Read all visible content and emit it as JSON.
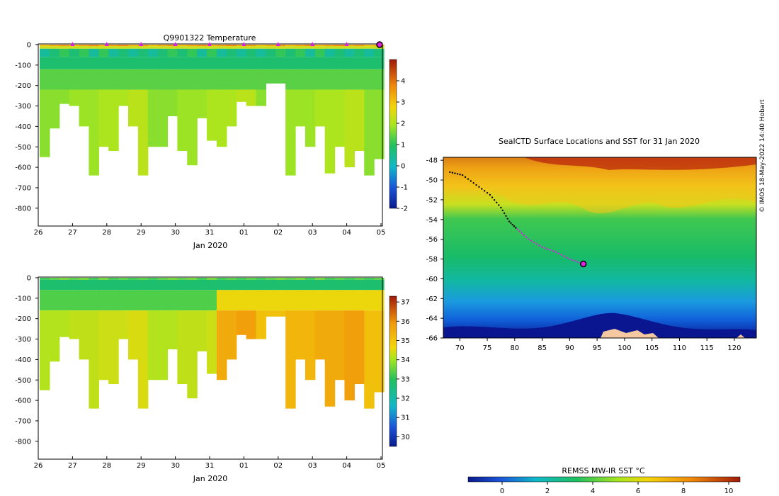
{
  "chart_data": [
    {
      "type": "heatmap",
      "title": "Q9901322  Temperature",
      "xlabel": "Jan 2020",
      "ylabel": "",
      "x_ticks": [
        "26",
        "27",
        "28",
        "29",
        "30",
        "31",
        "01",
        "02",
        "03",
        "04",
        "05"
      ],
      "y_ticks": [
        "0",
        "-100",
        "-200",
        "-300",
        "-400",
        "-500",
        "-600",
        "-700",
        "-800"
      ],
      "ylim": [
        -880,
        0
      ],
      "colorbar_ticks": [
        "4",
        "3",
        "2",
        "1",
        "0",
        "-1",
        "-2"
      ],
      "colorbar_range": [
        -2,
        5
      ],
      "profile_depths": [
        550,
        410,
        290,
        300,
        400,
        640,
        500,
        520,
        300,
        400,
        640,
        500,
        500,
        350,
        520,
        590,
        360,
        470,
        500,
        400,
        280,
        300,
        300,
        190,
        190,
        640,
        400,
        500,
        400,
        630,
        500,
        600,
        520,
        640,
        560
      ],
      "surface_markers_at_day": [
        1,
        2,
        3,
        4,
        5,
        6,
        7,
        8,
        9
      ]
    },
    {
      "type": "heatmap",
      "title": "",
      "xlabel": "Jan 2020",
      "ylabel": "",
      "x_ticks": [
        "26",
        "27",
        "28",
        "29",
        "30",
        "31",
        "01",
        "02",
        "03",
        "04",
        "05"
      ],
      "y_ticks": [
        "0",
        "-100",
        "-200",
        "-300",
        "-400",
        "-500",
        "-600",
        "-700",
        "-800"
      ],
      "ylim": [
        -880,
        0
      ],
      "colorbar_ticks": [
        "37",
        "36",
        "35",
        "34",
        "33",
        "32",
        "31",
        "30"
      ],
      "colorbar_range": [
        29.5,
        37.3
      ]
    },
    {
      "type": "heatmap",
      "title": "SealCTD Surface Locations and SST for 31 Jan 2020",
      "x_ticks": [
        "70",
        "75",
        "80",
        "85",
        "90",
        "95",
        "100",
        "105",
        "110",
        "115",
        "120"
      ],
      "y_ticks": [
        "-48",
        "-50",
        "-52",
        "-54",
        "-56",
        "-58",
        "-60",
        "-62",
        "-64",
        "-66"
      ],
      "xlim": [
        67,
        124
      ],
      "ylim": [
        -66,
        -47.7
      ],
      "track": [
        [
          68.2,
          -49.2
        ],
        [
          70.5,
          -49.5
        ],
        [
          73,
          -50.5
        ],
        [
          75.5,
          -51.5
        ],
        [
          77.5,
          -52.8
        ],
        [
          79,
          -54.2
        ],
        [
          80.5,
          -55
        ],
        [
          82.5,
          -56
        ],
        [
          85,
          -56.8
        ],
        [
          87.5,
          -57.3
        ],
        [
          90,
          -58
        ],
        [
          92.5,
          -58.5
        ]
      ],
      "latest_position": [
        92.5,
        -58.5
      ],
      "colorbar_label": "REMSS MW-IR SST °C",
      "colorbar_ticks": [
        "0",
        "2",
        "4",
        "6",
        "8",
        "10"
      ],
      "colorbar_range": [
        -1.5,
        10.5
      ]
    }
  ],
  "credit": "© IMOS 18-May-2022 14:40 Hobart"
}
